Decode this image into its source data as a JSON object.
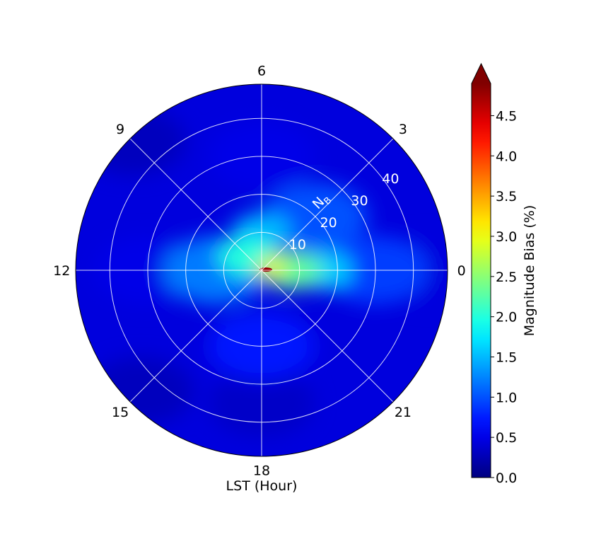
{
  "chart_data": {
    "type": "heatmap",
    "projection": "polar",
    "xlabel": "LST (Hour)",
    "theta_ticks": [
      "0",
      "3",
      "6",
      "9",
      "12",
      "15",
      "18",
      "21"
    ],
    "theta_direction": "counterclockwise from right (0 at east, 6 at top)",
    "radial_axis_label": "N",
    "radial_axis_label_sub": "B",
    "radial_ticks": [
      "10",
      "20",
      "30",
      "40"
    ],
    "rlim": [
      0,
      49
    ],
    "grid": true,
    "colorbar": {
      "label": "Magnitude Bias (%)",
      "ticks": [
        "0.0",
        "0.5",
        "1.0",
        "1.5",
        "2.0",
        "2.5",
        "3.0",
        "3.5",
        "4.0",
        "4.5"
      ],
      "range": [
        0.0,
        4.9
      ],
      "colormap": "jet",
      "extend": "max",
      "extend_color": "#800000"
    },
    "field_samples": [
      {
        "r": 0,
        "lst": 0,
        "value": 4.8
      },
      {
        "r": 2,
        "lst": 0,
        "value": 3.0
      },
      {
        "r": 4,
        "lst": 2,
        "value": 2.8
      },
      {
        "r": 5,
        "lst": 9,
        "value": 2.0
      },
      {
        "r": 8,
        "lst": 0,
        "value": 2.3
      },
      {
        "r": 10,
        "lst": 6,
        "value": 1.5
      },
      {
        "r": 12,
        "lst": 12,
        "value": 1.2
      },
      {
        "r": 16,
        "lst": 0,
        "value": 1.6
      },
      {
        "r": 20,
        "lst": 3,
        "value": 1.0
      },
      {
        "r": 20,
        "lst": 18,
        "value": 0.7
      },
      {
        "r": 30,
        "lst": 0,
        "value": 0.9
      },
      {
        "r": 30,
        "lst": 6,
        "value": 0.5
      },
      {
        "r": 30,
        "lst": 12,
        "value": 0.5
      },
      {
        "r": 35,
        "lst": 18,
        "value": 0.35
      },
      {
        "r": 45,
        "lst": 0,
        "value": 0.45
      },
      {
        "r": 45,
        "lst": 15,
        "value": 0.3
      },
      {
        "r": 48,
        "lst": 9,
        "value": 0.3
      }
    ],
    "background_value": 0.45
  }
}
